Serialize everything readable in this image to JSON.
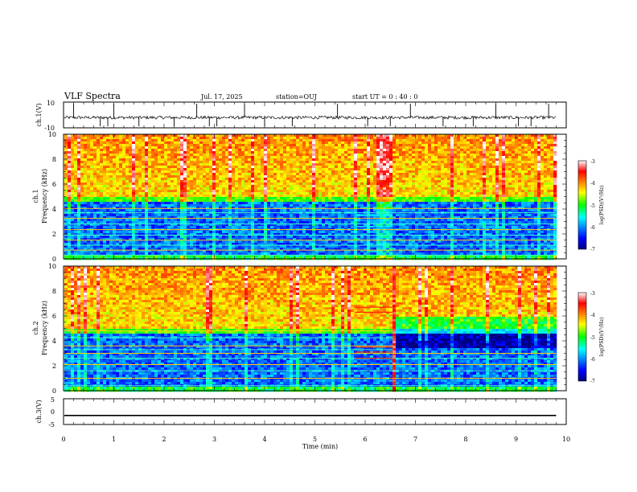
{
  "header": {
    "title": "VLF Spectra",
    "date": "Jul. 17, 2025",
    "station": "station=OUJ",
    "start": "start UT =  0 : 40 : 0"
  },
  "chart_data": [
    {
      "type": "line",
      "ylabel": "ch.1(V)",
      "ylim": [
        -10,
        10
      ],
      "yticklabels": [
        "10",
        "-10"
      ],
      "xlim": [
        0,
        10
      ],
      "grid": false,
      "baseline": -2,
      "noise_amplitude": 1.2,
      "spikes": [
        0.2,
        0.73,
        0.88,
        1.0,
        1.5,
        2.2,
        2.65,
        2.9,
        3.05,
        3.6,
        4.0,
        4.55,
        5.45,
        6.05,
        6.5,
        6.9,
        7.55,
        8.15,
        8.6,
        9.05,
        9.3,
        9.65
      ]
    },
    {
      "type": "heatmap",
      "ylabel": "ch.1",
      "ylabel2": "Frequency (kHz)",
      "ylim": [
        0,
        10
      ],
      "yticklabels": [
        "0",
        "2",
        "4",
        "6",
        "8",
        "10"
      ],
      "xlim": [
        0,
        10
      ],
      "data_extent_min": 9.8,
      "colorbar": {
        "label": "log(PSD)(V²/Hz)",
        "range": [
          -7,
          -3
        ],
        "ticklabels": [
          "-3",
          "-4",
          "-5",
          "-6",
          "-7"
        ]
      },
      "transitions_min": [
        5.8,
        6.55
      ],
      "tone_lines_khz": [
        0.3,
        0.7,
        1.1,
        1.5,
        1.9,
        2.35,
        2.8,
        3.25,
        3.7,
        4.05
      ],
      "quiet_band_khz": [
        0.5,
        4.5
      ]
    },
    {
      "type": "heatmap",
      "ylabel": "ch.2",
      "ylabel2": "Frequency (kHz)",
      "ylim": [
        0,
        10
      ],
      "yticklabels": [
        "0",
        "2",
        "4",
        "6",
        "8",
        "10"
      ],
      "xlim": [
        0,
        10
      ],
      "data_extent_min": 9.8,
      "colorbar": {
        "label": "log(PSD)(V²/Hz)",
        "range": [
          -7,
          -3
        ],
        "ticklabels": [
          "-3",
          "-4",
          "-5",
          "-6",
          "-7"
        ]
      },
      "transitions_min": [
        5.8,
        6.55
      ],
      "tone_lines_khz": [
        0.4,
        1.0,
        1.6,
        2.1,
        2.6,
        3.0,
        3.3,
        3.6,
        4.25,
        4.8
      ],
      "quiet_band_khz": [
        0.5,
        4.5
      ]
    },
    {
      "type": "line",
      "ylabel": "ch.3(V)",
      "ylim": [
        -5,
        5
      ],
      "yticklabels": [
        "5",
        "0",
        "-5"
      ],
      "xlim": [
        0,
        10
      ],
      "xticklabels": [
        "0",
        "1",
        "2",
        "3",
        "4",
        "5",
        "6",
        "7",
        "8",
        "9",
        "10"
      ],
      "xlabel": "Time (min)",
      "constant_value": -1.5,
      "data_extent_min": 9.8
    }
  ]
}
